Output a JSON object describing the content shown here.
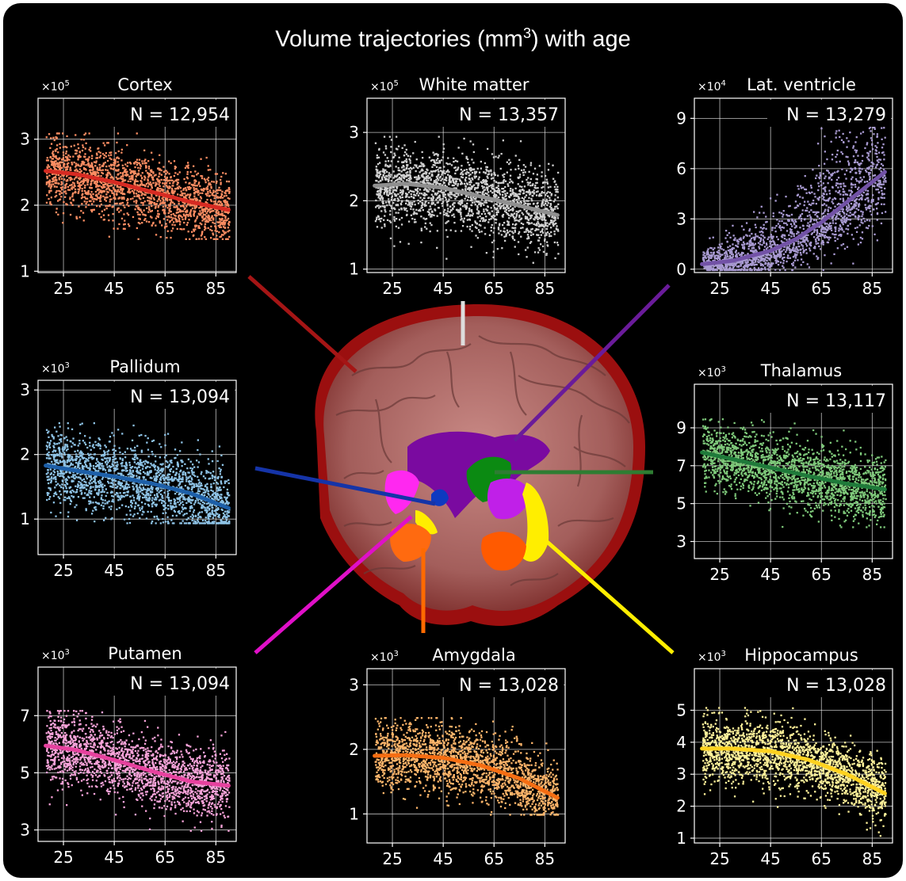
{
  "title_main": "Volume trajectories (mm",
  "title_sup": "3",
  "title_tail": ") with age",
  "connector_colors": [
    "#a51515",
    "#dddddd",
    "#6a1b9a",
    "#1534a8",
    "#2e7d32",
    "#e010c8",
    "#ff6a00",
    "#ffee00"
  ],
  "chart_data": [
    {
      "type": "scatter",
      "title": "Cortex",
      "multiplier_base": "×10",
      "multiplier_exp": "5",
      "annotation": "N = 12,954",
      "x_ticks": [
        25,
        45,
        65,
        85
      ],
      "y_ticks": [
        1,
        2,
        3
      ],
      "y_tick_labels": [
        "1",
        "2",
        "3"
      ],
      "xlim": [
        15,
        93
      ],
      "ylim": [
        0.98,
        3.62
      ],
      "point_color": "#fc8d62",
      "line_color": "#d62a22",
      "trend": {
        "x": [
          18,
          30,
          45,
          60,
          75,
          90
        ],
        "y": [
          2.52,
          2.47,
          2.35,
          2.2,
          2.05,
          1.93
        ]
      },
      "scatter": {
        "spread": 0.26,
        "density": 2000,
        "seed": 11,
        "y_min": 1.5,
        "y_max": 3.1
      }
    },
    {
      "type": "scatter",
      "title": "White matter",
      "multiplier_base": "×10",
      "multiplier_exp": "5",
      "annotation": "N = 13,357",
      "x_ticks": [
        25,
        45,
        65,
        85
      ],
      "y_ticks": [
        1,
        2,
        3
      ],
      "y_tick_labels": [
        "1",
        "2",
        "3"
      ],
      "xlim": [
        15,
        93
      ],
      "ylim": [
        0.95,
        3.5
      ],
      "point_color": "#d0d0d0",
      "line_color": "#8f8f8f",
      "trend": {
        "x": [
          18,
          30,
          45,
          60,
          75,
          90
        ],
        "y": [
          2.22,
          2.25,
          2.19,
          2.06,
          1.93,
          1.79
        ]
      },
      "scatter": {
        "spread": 0.28,
        "density": 2000,
        "seed": 23,
        "y_min": 1.1,
        "y_max": 2.95
      }
    },
    {
      "type": "scatter",
      "title": "Lat. ventricle",
      "multiplier_base": "×10",
      "multiplier_exp": "4",
      "annotation": "N = 13,279",
      "x_ticks": [
        25,
        45,
        65,
        85
      ],
      "y_ticks": [
        0,
        3,
        6,
        9
      ],
      "y_tick_labels": [
        "0",
        "3",
        "6",
        "9"
      ],
      "xlim": [
        15,
        93
      ],
      "ylim": [
        -0.2,
        10.2
      ],
      "point_color": "#a89ad1",
      "line_color": "#7252a6",
      "trend": {
        "x": [
          18,
          30,
          45,
          55,
          65,
          75,
          90
        ],
        "y": [
          0.3,
          0.5,
          1.1,
          1.8,
          2.8,
          4.0,
          5.8
        ]
      },
      "scatter": {
        "spread": 1.3,
        "density": 1800,
        "seed": 37,
        "y_min": 0,
        "y_max": 9.3,
        "growth": true
      }
    },
    {
      "type": "scatter",
      "title": "Pallidum",
      "multiplier_base": "×10",
      "multiplier_exp": "3",
      "annotation": "N = 13,094",
      "x_ticks": [
        25,
        45,
        65,
        85
      ],
      "y_ticks": [
        1,
        2,
        3
      ],
      "y_tick_labels": [
        "1",
        "2",
        "3"
      ],
      "xlim": [
        15,
        93
      ],
      "ylim": [
        0.45,
        3.15
      ],
      "point_color": "#8ec3e6",
      "line_color": "#1d5fa8",
      "trend": {
        "x": [
          18,
          30,
          45,
          60,
          75,
          90
        ],
        "y": [
          1.83,
          1.75,
          1.66,
          1.55,
          1.4,
          1.17
        ]
      },
      "scatter": {
        "spread": 0.28,
        "density": 2000,
        "seed": 41,
        "y_min": 0.95,
        "y_max": 2.5
      }
    },
    {
      "type": "scatter",
      "title": "Thalamus",
      "multiplier_base": "×10",
      "multiplier_exp": "3",
      "annotation": "N = 13,117",
      "x_ticks": [
        25,
        45,
        65,
        85
      ],
      "y_ticks": [
        3,
        5,
        7,
        9
      ],
      "y_tick_labels": [
        "3",
        "5",
        "7",
        "9"
      ],
      "xlim": [
        15,
        93
      ],
      "ylim": [
        2.1,
        11.3
      ],
      "point_color": "#7ec97a",
      "line_color": "#1f7a3a",
      "trend": {
        "x": [
          18,
          30,
          45,
          60,
          75,
          90
        ],
        "y": [
          7.7,
          7.35,
          6.9,
          6.45,
          6.05,
          5.75
        ]
      },
      "scatter": {
        "spread": 0.85,
        "density": 2000,
        "seed": 53,
        "y_min": 3.8,
        "y_max": 9.5
      }
    },
    {
      "type": "scatter",
      "title": "Putamen",
      "multiplier_base": "×10",
      "multiplier_exp": "3",
      "annotation": "N = 13,094",
      "x_ticks": [
        25,
        45,
        65,
        85
      ],
      "y_ticks": [
        3,
        5,
        7
      ],
      "y_tick_labels": [
        "3",
        "5",
        "7"
      ],
      "xlim": [
        15,
        93
      ],
      "ylim": [
        2.6,
        8.7
      ],
      "point_color": "#f7a3d9",
      "line_color": "#e6419e",
      "trend": {
        "x": [
          18,
          30,
          45,
          60,
          75,
          90
        ],
        "y": [
          5.95,
          5.8,
          5.45,
          5.05,
          4.7,
          4.55
        ]
      },
      "scatter": {
        "spread": 0.6,
        "density": 2000,
        "seed": 67,
        "y_min": 3.0,
        "y_max": 7.2
      }
    },
    {
      "type": "scatter",
      "title": "Amygdala",
      "multiplier_base": "×10",
      "multiplier_exp": "3",
      "annotation": "N = 13,028",
      "x_ticks": [
        25,
        45,
        65,
        85
      ],
      "y_ticks": [
        1,
        2,
        3
      ],
      "y_tick_labels": [
        "1",
        "2",
        "3"
      ],
      "xlim": [
        15,
        93
      ],
      "ylim": [
        0.55,
        3.25
      ],
      "point_color": "#fdb56a",
      "line_color": "#f56d12",
      "trend": {
        "x": [
          18,
          30,
          45,
          60,
          75,
          90
        ],
        "y": [
          1.9,
          1.91,
          1.87,
          1.75,
          1.55,
          1.25
        ]
      },
      "scatter": {
        "spread": 0.25,
        "density": 2000,
        "seed": 79,
        "y_min": 1.0,
        "y_max": 2.5
      }
    },
    {
      "type": "scatter",
      "title": "Hippocampus",
      "multiplier_base": "×10",
      "multiplier_exp": "3",
      "annotation": "N = 13,028",
      "x_ticks": [
        25,
        45,
        65,
        85
      ],
      "y_ticks": [
        1,
        2,
        3,
        4,
        5
      ],
      "y_tick_labels": [
        "1",
        "2",
        "3",
        "4",
        "5"
      ],
      "xlim": [
        15,
        93
      ],
      "ylim": [
        0.85,
        6.3
      ],
      "point_color": "#fff29a",
      "line_color": "#ffd21f",
      "trend": {
        "x": [
          18,
          30,
          45,
          60,
          75,
          90
        ],
        "y": [
          3.8,
          3.8,
          3.72,
          3.45,
          3.0,
          2.4
        ]
      },
      "scatter": {
        "spread": 0.5,
        "density": 2000,
        "seed": 97,
        "y_min": 1.1,
        "y_max": 5.1
      }
    }
  ]
}
